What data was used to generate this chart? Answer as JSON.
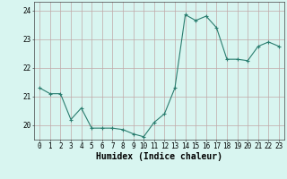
{
  "x": [
    0,
    1,
    2,
    3,
    4,
    5,
    6,
    7,
    8,
    9,
    10,
    11,
    12,
    13,
    14,
    15,
    16,
    17,
    18,
    19,
    20,
    21,
    22,
    23
  ],
  "y": [
    21.3,
    21.1,
    21.1,
    20.2,
    20.6,
    19.9,
    19.9,
    19.9,
    19.85,
    19.7,
    19.6,
    20.1,
    20.4,
    21.3,
    23.85,
    23.65,
    23.8,
    23.4,
    22.3,
    22.3,
    22.25,
    22.75,
    22.9,
    22.75
  ],
  "line_color": "#2a7d6f",
  "marker": "+",
  "markersize": 3,
  "linewidth": 0.8,
  "background_color": "#d8f5f0",
  "grid_color": "#c0a8a8",
  "xlabel": "Humidex (Indice chaleur)",
  "xlabel_fontsize": 7,
  "ylim": [
    19.5,
    24.3
  ],
  "xlim": [
    -0.5,
    23.5
  ],
  "yticks": [
    20,
    21,
    22,
    23,
    24
  ],
  "xtick_labels": [
    "0",
    "1",
    "2",
    "3",
    "4",
    "5",
    "6",
    "7",
    "8",
    "9",
    "10",
    "11",
    "12",
    "13",
    "14",
    "15",
    "16",
    "17",
    "18",
    "19",
    "20",
    "21",
    "22",
    "23"
  ],
  "tick_fontsize": 5.5,
  "figsize": [
    3.2,
    2.0
  ],
  "dpi": 100
}
